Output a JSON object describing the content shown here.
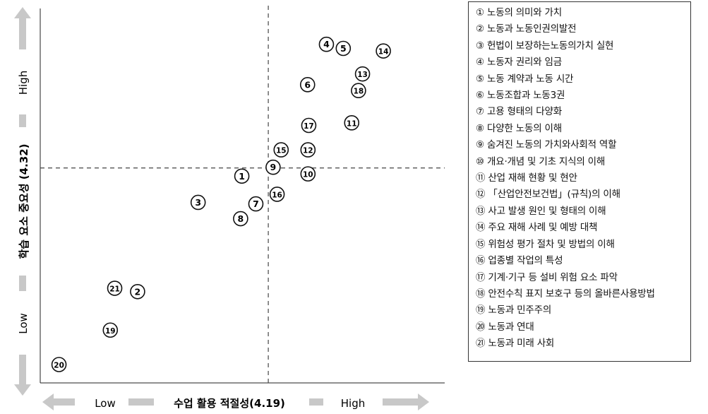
{
  "chart_data": {
    "type": "scatter",
    "xlabel": "수업 활용 적절성(4.19)",
    "ylabel": "학습 요소 중요성 (4.32)",
    "x_low_label": "Low",
    "x_high_label": "High",
    "y_low_label": "Low",
    "y_high_label": "High",
    "points": [
      {
        "id": "1",
        "label": "①",
        "x": 0.494,
        "y": 0.551
      },
      {
        "id": "2",
        "label": "②",
        "x": 0.234,
        "y": 0.239
      },
      {
        "id": "3",
        "label": "③",
        "x": 0.385,
        "y": 0.48
      },
      {
        "id": "4",
        "label": "④",
        "x": 0.705,
        "y": 0.907
      },
      {
        "id": "5",
        "label": "⑤",
        "x": 0.747,
        "y": 0.896
      },
      {
        "id": "6",
        "label": "⑥",
        "x": 0.658,
        "y": 0.798
      },
      {
        "id": "7",
        "label": "⑦",
        "x": 0.529,
        "y": 0.476
      },
      {
        "id": "8",
        "label": "⑧",
        "x": 0.491,
        "y": 0.436
      },
      {
        "id": "9",
        "label": "⑨",
        "x": 0.572,
        "y": 0.575
      },
      {
        "id": "10",
        "label": "⑩",
        "x": 0.659,
        "y": 0.557
      },
      {
        "id": "11",
        "label": "⑪",
        "x": 0.768,
        "y": 0.695
      },
      {
        "id": "12",
        "label": "⑫",
        "x": 0.659,
        "y": 0.622
      },
      {
        "id": "13",
        "label": "⑬",
        "x": 0.795,
        "y": 0.827
      },
      {
        "id": "14",
        "label": "⑭",
        "x": 0.847,
        "y": 0.889
      },
      {
        "id": "15",
        "label": "⑮",
        "x": 0.592,
        "y": 0.622
      },
      {
        "id": "16",
        "label": "⑯",
        "x": 0.582,
        "y": 0.502
      },
      {
        "id": "17",
        "label": "⑰",
        "x": 0.661,
        "y": 0.688
      },
      {
        "id": "18",
        "label": "⑱",
        "x": 0.785,
        "y": 0.782
      },
      {
        "id": "19",
        "label": "⑲",
        "x": 0.166,
        "y": 0.135
      },
      {
        "id": "20",
        "label": "⑳",
        "x": 0.038,
        "y": 0.042
      },
      {
        "id": "21",
        "label": "㉑",
        "x": 0.177,
        "y": 0.248
      }
    ],
    "reference_lines": {
      "x": 0.56,
      "y": 0.573
    },
    "xlim": [
      0,
      1
    ],
    "ylim": [
      0,
      1
    ],
    "grid": false,
    "legend_placement": "right"
  },
  "legend": {
    "items": [
      {
        "num": "①",
        "text": "노동의 의미와 가치"
      },
      {
        "num": "②",
        "text": "노동과 노동인권의발전"
      },
      {
        "num": "③",
        "text": "헌법이 보장하는노동의가치 실현"
      },
      {
        "num": "④",
        "text": "노동자 권리와 임금"
      },
      {
        "num": "⑤",
        "text": "노동 계약과 노동 시간"
      },
      {
        "num": "⑥",
        "text": "노동조합과 노동3권"
      },
      {
        "num": "⑦",
        "text": "고용 형태의 다양화"
      },
      {
        "num": "⑧",
        "text": "다양한 노동의 이해"
      },
      {
        "num": "⑨",
        "text": "숨겨진 노동의 가치와사회적 역할"
      },
      {
        "num": "⑩",
        "text": "개요·개념 및 기초 지식의 이해"
      },
      {
        "num": "⑪",
        "text": "산업 재해 현황 및 현안"
      },
      {
        "num": "⑫",
        "text": "「산업안전보건법」(규칙)의 이해"
      },
      {
        "num": "⑬",
        "text": "사고 발생 원인 및 형태의 이해"
      },
      {
        "num": "⑭",
        "text": "주요 재해 사례 및 예방 대책"
      },
      {
        "num": "⑮",
        "text": "위험성 평가 절차 및 방법의 이해"
      },
      {
        "num": "⑯",
        "text": "업종별 작업의 특성"
      },
      {
        "num": "⑰",
        "text": "기계·기구 등 설비 위험 요소 파악"
      },
      {
        "num": "⑱",
        "text": "안전수칙 표지 보호구 등의 올바른사용방법"
      },
      {
        "num": "⑲",
        "text": "노동과 민주주의"
      },
      {
        "num": "⑳",
        "text": "노동과 연대"
      },
      {
        "num": "㉑",
        "text": "노동과 미래 사회"
      }
    ]
  }
}
